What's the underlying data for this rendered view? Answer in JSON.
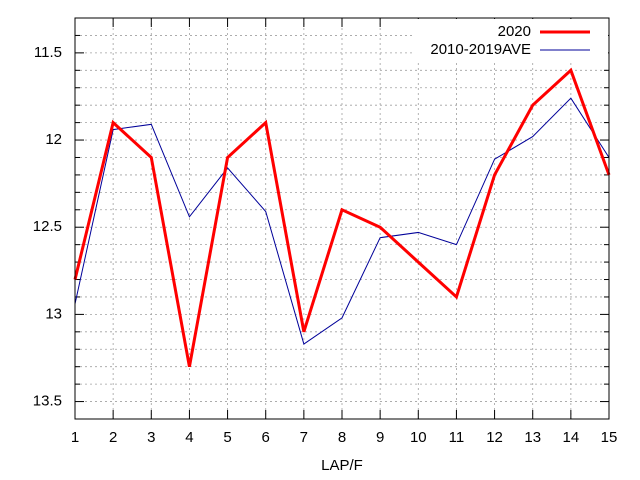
{
  "chart_data": {
    "type": "line",
    "x_label": "LAP/F",
    "x": [
      1,
      2,
      3,
      4,
      5,
      6,
      7,
      8,
      9,
      10,
      11,
      12,
      13,
      14,
      15
    ],
    "series": [
      {
        "name": "2020",
        "color": "#ff0000",
        "width": 3,
        "values": [
          12.8,
          11.9,
          12.1,
          13.3,
          12.1,
          11.9,
          13.1,
          12.4,
          12.5,
          12.7,
          12.9,
          12.2,
          11.8,
          11.6,
          12.2
        ]
      },
      {
        "name": "2010-2019AVE",
        "color": "#000099",
        "width": 1,
        "values": [
          12.94,
          11.94,
          11.91,
          12.44,
          12.16,
          12.41,
          13.17,
          13.02,
          12.56,
          12.53,
          12.6,
          12.11,
          11.98,
          11.76,
          12.1
        ]
      }
    ],
    "xlim": [
      1,
      15
    ],
    "xticks": [
      1,
      2,
      3,
      4,
      5,
      6,
      7,
      8,
      9,
      10,
      11,
      12,
      13,
      14,
      15
    ],
    "ylim": [
      13.6,
      11.3
    ],
    "yticks": [
      11.5,
      12,
      12.5,
      13,
      13.5
    ],
    "y_minor_ticks": [
      11.4,
      11.6,
      11.7,
      11.8,
      11.9,
      12.1,
      12.2,
      12.3,
      12.4,
      12.6,
      12.7,
      12.8,
      12.9,
      13.1,
      13.2,
      13.3,
      13.4
    ],
    "grid": true,
    "legend": "top-right"
  }
}
